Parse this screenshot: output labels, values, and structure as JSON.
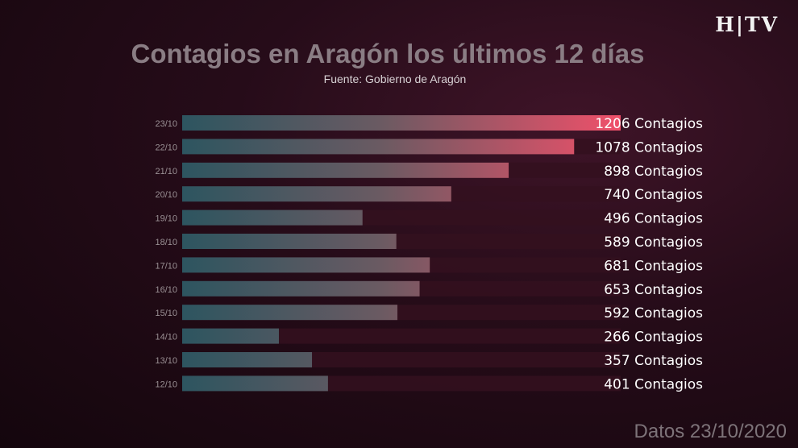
{
  "logo": "H|TV",
  "footer": "Datos 23/10/2020",
  "chart_data": {
    "type": "bar",
    "orientation": "horizontal",
    "title": "Contagios en Aragón los últimos 12 días",
    "subtitle": "Fuente: Gobierno de Aragón",
    "categories": [
      "23/10",
      "22/10",
      "21/10",
      "20/10",
      "19/10",
      "18/10",
      "17/10",
      "16/10",
      "15/10",
      "14/10",
      "13/10",
      "12/10"
    ],
    "values": [
      1206,
      1078,
      898,
      740,
      496,
      589,
      681,
      653,
      592,
      266,
      357,
      401
    ],
    "data_labels": [
      "1206 Contagios",
      "1078 Contagios",
      "898 Contagios",
      "740 Contagios",
      "496 Contagios",
      "589 Contagios",
      "681 Contagios",
      "653 Contagios",
      "592 Contagios",
      "266 Contagios",
      "357 Contagios",
      "401 Contagios"
    ],
    "xlim": [
      0,
      1206
    ],
    "grid": false,
    "colors": {
      "bar_start": "#2d5560",
      "bar_end": "#f0506a",
      "track": "#34101e",
      "label": "#ffffff",
      "category": "#9a9094"
    }
  }
}
